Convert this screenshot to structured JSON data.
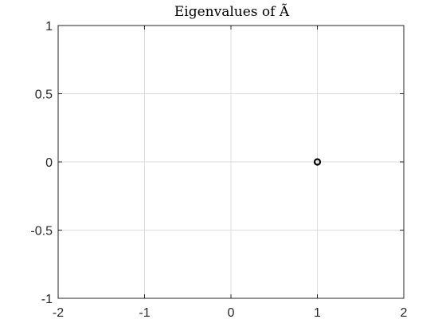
{
  "chart_data": {
    "type": "scatter",
    "title": "Eigenvalues of Ã",
    "xlabel": "",
    "ylabel": "",
    "xlim": [
      -2,
      2
    ],
    "ylim": [
      -1,
      1
    ],
    "xticks": [
      -2,
      -1,
      0,
      1,
      2
    ],
    "yticks": [
      -1,
      -0.5,
      0,
      0.5,
      1
    ],
    "xtick_labels": [
      "-2",
      "-1",
      "0",
      "1",
      "2"
    ],
    "ytick_labels": [
      "-1",
      "-0.5",
      "0",
      "0.5",
      "1"
    ],
    "grid": true,
    "series": [
      {
        "marker": "circle-open",
        "color": "#000000",
        "points": [
          {
            "x": 1,
            "y": 0
          }
        ]
      }
    ]
  },
  "colors": {
    "axis": "#262626",
    "grid": "#dcdcdc",
    "background": "#ffffff",
    "marker": "#000000"
  }
}
